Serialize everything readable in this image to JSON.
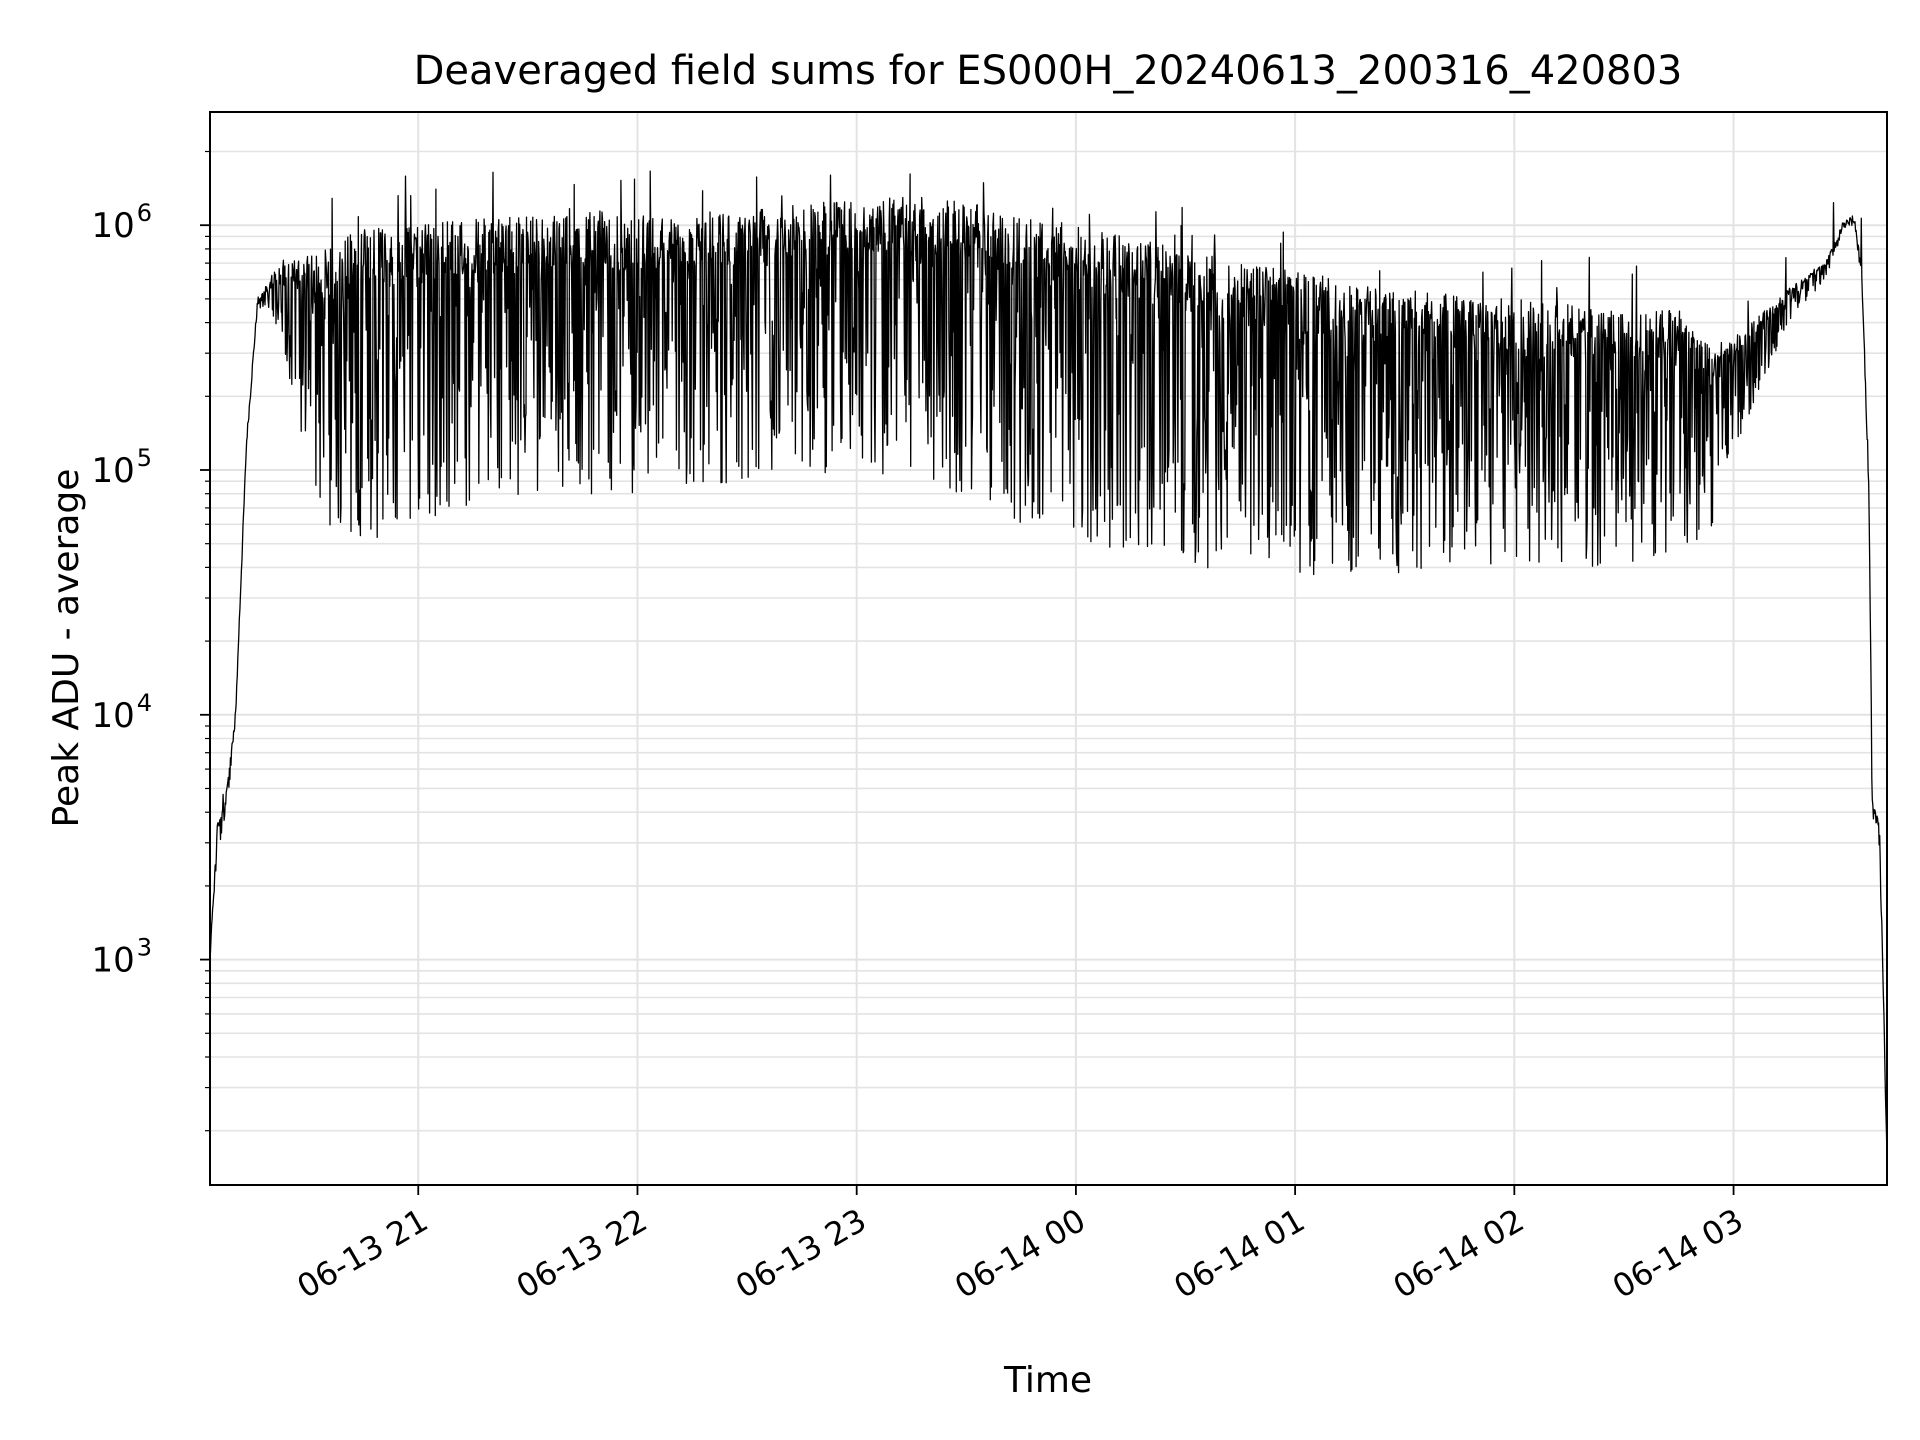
{
  "chart_data": {
    "type": "line",
    "title": "Deaveraged field sums for ES000H_20240613_200316_420803",
    "xlabel": "Time",
    "ylabel": "Peak ADU - average",
    "yscale": "log",
    "ylim": [
      120,
      2900000
    ],
    "xlim": [
      "2024-06-13 20:03",
      "2024-06-14 03:42"
    ],
    "grid": true,
    "x_ticks": [
      {
        "t": "2024-06-13 21:00",
        "label": "06-13 21"
      },
      {
        "t": "2024-06-13 22:00",
        "label": "06-13 22"
      },
      {
        "t": "2024-06-13 23:00",
        "label": "06-13 23"
      },
      {
        "t": "2024-06-14 00:00",
        "label": "06-14 00"
      },
      {
        "t": "2024-06-14 01:00",
        "label": "06-14 01"
      },
      {
        "t": "2024-06-14 02:00",
        "label": "06-14 02"
      },
      {
        "t": "2024-06-14 03:00",
        "label": "06-14 03"
      }
    ],
    "y_ticks": [
      {
        "value": 1000,
        "base": "10",
        "exp": "3"
      },
      {
        "value": 10000,
        "base": "10",
        "exp": "4"
      },
      {
        "value": 100000,
        "base": "10",
        "exp": "5"
      },
      {
        "value": 1000000,
        "base": "10",
        "exp": "6"
      }
    ],
    "series": [
      {
        "color": "#000000",
        "envelope": {
          "x": [
            "2024-06-13 20:03",
            "2024-06-13 20:05",
            "2024-06-13 20:07",
            "2024-06-13 20:10",
            "2024-06-13 20:13",
            "2024-06-13 20:16",
            "2024-06-13 20:20",
            "2024-06-13 20:24",
            "2024-06-13 20:30",
            "2024-06-13 20:35",
            "2024-06-13 20:40",
            "2024-06-13 20:50",
            "2024-06-13 21:00",
            "2024-06-13 21:10",
            "2024-06-13 21:30",
            "2024-06-13 22:00",
            "2024-06-13 22:30",
            "2024-06-13 23:00",
            "2024-06-13 23:20",
            "2024-06-13 23:35",
            "2024-06-13 23:45",
            "2024-06-14 00:00",
            "2024-06-14 00:15",
            "2024-06-14 00:30",
            "2024-06-14 00:45",
            "2024-06-14 01:00",
            "2024-06-14 01:15",
            "2024-06-14 01:30",
            "2024-06-14 01:45",
            "2024-06-14 02:00",
            "2024-06-14 02:15",
            "2024-06-14 02:30",
            "2024-06-14 02:45",
            "2024-06-14 02:55",
            "2024-06-14 03:05",
            "2024-06-14 03:15",
            "2024-06-14 03:25",
            "2024-06-14 03:30",
            "2024-06-14 03:33",
            "2024-06-14 03:35",
            "2024-06-14 03:37",
            "2024-06-14 03:38",
            "2024-06-14 03:39",
            "2024-06-14 03:40",
            "2024-06-14 03:42"
          ],
          "upper": [
            1000,
            3600,
            4300,
            10000,
            130000,
            480000,
            640000,
            700000,
            750000,
            800000,
            900000,
            1000000,
            1050000,
            1050000,
            1100000,
            1100000,
            1150000,
            1300000,
            1300000,
            1200000,
            1100000,
            1000000,
            900000,
            800000,
            700000,
            650000,
            600000,
            550000,
            520000,
            500000,
            480000,
            450000,
            450000,
            300000,
            400000,
            550000,
            700000,
            1000000,
            1050000,
            700000,
            100000,
            4300,
            4000,
            3500,
            150
          ],
          "lower": [
            1000,
            2800,
            3300,
            9000,
            120000,
            450000,
            400000,
            250000,
            100000,
            60000,
            50000,
            50000,
            60000,
            70000,
            80000,
            80000,
            90000,
            100000,
            90000,
            70000,
            60000,
            50000,
            45000,
            40000,
            38000,
            35000,
            36000,
            38000,
            40000,
            40000,
            40000,
            40000,
            45000,
            60000,
            180000,
            400000,
            600000,
            900000,
            950000,
            600000,
            80000,
            3300,
            3200,
            2800,
            150
          ]
        }
      }
    ]
  }
}
